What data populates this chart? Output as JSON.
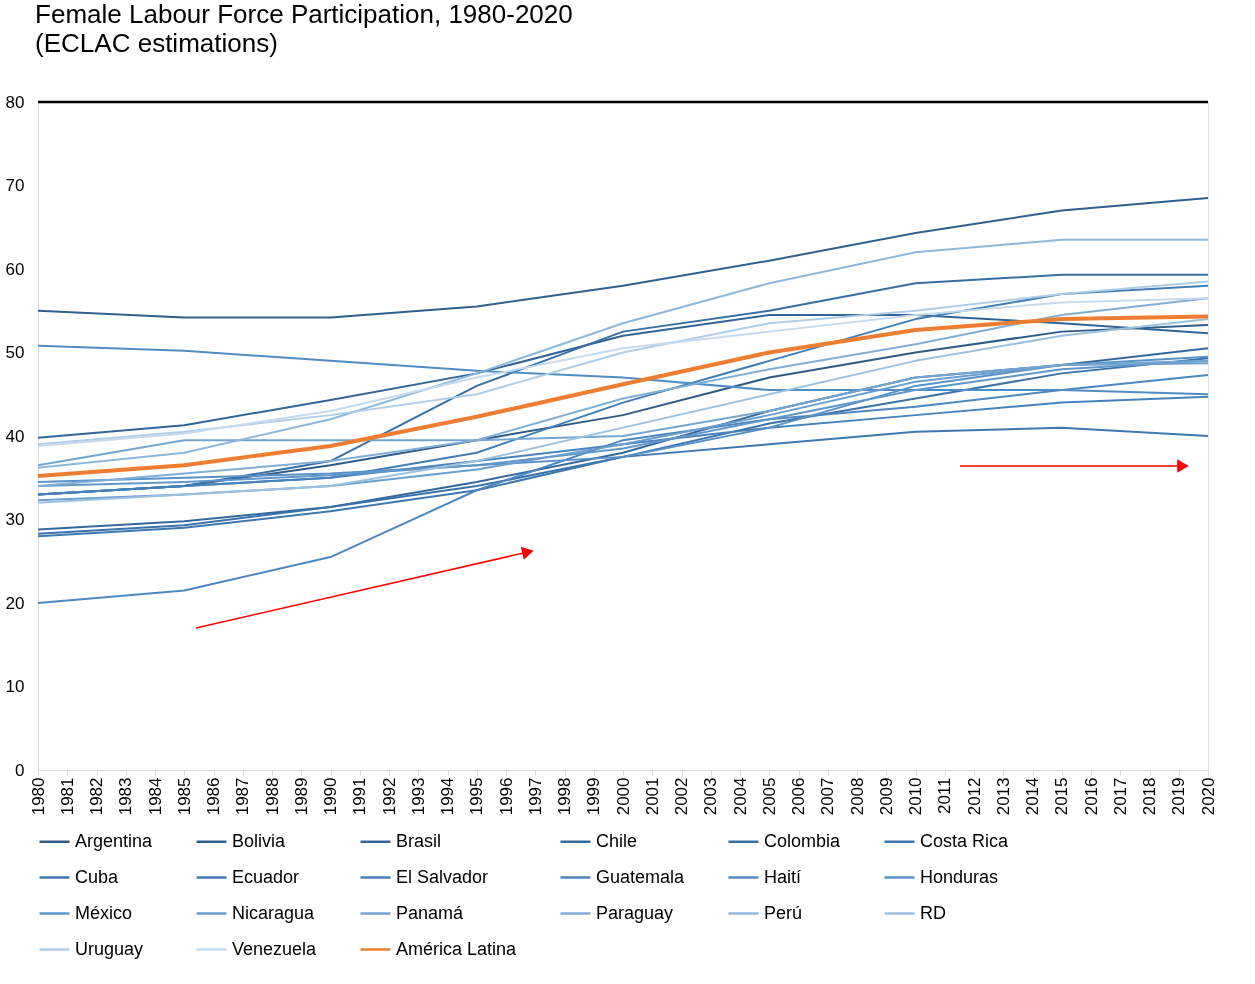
{
  "chart_data": {
    "type": "line",
    "title": "Female Labour Force Participation, 1980-2020",
    "subtitle": "(ECLAC estimations)",
    "x": [
      1980,
      1985,
      1990,
      1995,
      2000,
      2005,
      2010,
      2015,
      2020
    ],
    "xlim": [
      1980,
      2020
    ],
    "xticks": [
      1980,
      1981,
      1982,
      1983,
      1984,
      1985,
      1986,
      1987,
      1988,
      1989,
      1990,
      1991,
      1992,
      1993,
      1994,
      1995,
      1996,
      1997,
      1998,
      1999,
      2000,
      2001,
      2002,
      2003,
      2004,
      2005,
      2006,
      2007,
      2008,
      2009,
      2010,
      2011,
      2012,
      2013,
      2014,
      2015,
      2016,
      2017,
      2018,
      2019,
      2020
    ],
    "ylim": [
      0,
      80
    ],
    "yticks": [
      0,
      10,
      20,
      30,
      40,
      50,
      60,
      70,
      80
    ],
    "grid": false,
    "legend": "bottom",
    "marker": "none",
    "line_style": "solid",
    "ref_lines": [
      {
        "axis": "y",
        "value": 80,
        "color": "#000000"
      }
    ],
    "series": [
      {
        "name": "Argentina",
        "color": "#2f5b88",
        "values": [
          33,
          34,
          36.5,
          39.5,
          42.5,
          47,
          50,
          52.5,
          53.3
        ]
      },
      {
        "name": "Bolivia",
        "color": "#31608f",
        "values": [
          55,
          54.2,
          54.2,
          55.5,
          58,
          61,
          64.3,
          67,
          68.5
        ]
      },
      {
        "name": "Brasil",
        "color": "#336496",
        "values": [
          39.8,
          41.3,
          44.3,
          47.5,
          52,
          54.5,
          54.5,
          53.5,
          52.3
        ]
      },
      {
        "name": "Chile",
        "color": "#35699d",
        "values": [
          28.8,
          29.8,
          31.5,
          34.5,
          38,
          43,
          47,
          48.5,
          50.5
        ]
      },
      {
        "name": "Colombia",
        "color": "#376ea4",
        "values": [
          33,
          34,
          37,
          46,
          52.5,
          55,
          58.3,
          59.3,
          59.3
        ]
      },
      {
        "name": "Costa Rica",
        "color": "#3a73ab",
        "values": [
          28.3,
          29.3,
          31.5,
          34,
          37.5,
          41.5,
          44.5,
          47.5,
          49.3
        ]
      },
      {
        "name": "Cuba",
        "color": "#3d78b1",
        "values": [
          28,
          29,
          31,
          33.5,
          37.5,
          39,
          40.5,
          41,
          40
        ]
      },
      {
        "name": "Ecuador",
        "color": "#417db6",
        "values": [
          33,
          34,
          35,
          38,
          44,
          49,
          54,
          57,
          58
        ]
      },
      {
        "name": "El Salvador",
        "color": "#4682bb",
        "values": [
          33,
          34,
          35,
          37,
          39,
          41,
          42.5,
          44,
          44.7
        ]
      },
      {
        "name": "Guatemala",
        "color": "#4b87c0",
        "values": [
          20,
          21.5,
          25.5,
          33.5,
          39.5,
          42,
          43.5,
          45.5,
          47.3
        ]
      },
      {
        "name": "Haití",
        "color": "#518cc3",
        "values": [
          50.8,
          50.2,
          49,
          47.8,
          47,
          45.5,
          45.5,
          45.5,
          45
        ]
      },
      {
        "name": "Honduras",
        "color": "#5891c6",
        "values": [
          34.5,
          35,
          35.5,
          36.5,
          37.5,
          41,
          46,
          48.5,
          49.5
        ]
      },
      {
        "name": "México",
        "color": "#6097ca",
        "values": [
          34,
          34.5,
          35.3,
          36.5,
          38.5,
          42,
          45.5,
          48,
          49
        ]
      },
      {
        "name": "Nicaragua",
        "color": "#699ece",
        "values": [
          32.3,
          33,
          34,
          36,
          39,
          42.5,
          46.5,
          48.5,
          48.7
        ]
      },
      {
        "name": "Panamá",
        "color": "#74a5d2",
        "values": [
          36.5,
          39.5,
          39.5,
          39.5,
          40,
          43,
          47,
          48.5,
          49
        ]
      },
      {
        "name": "Paraguay",
        "color": "#80aed7",
        "values": [
          34,
          35.5,
          37,
          39.5,
          44.5,
          48,
          51,
          54.5,
          56.5
        ]
      },
      {
        "name": "Perú",
        "color": "#8db7dc",
        "values": [
          36.2,
          38,
          42,
          47.5,
          53.5,
          58.3,
          62,
          63.5,
          63.5
        ]
      },
      {
        "name": "RD",
        "color": "#9cc1e1",
        "values": [
          32,
          33,
          34,
          37,
          41,
          45,
          49,
          52,
          54
        ]
      },
      {
        "name": "Uruguay",
        "color": "#b0cde8",
        "values": [
          39,
          40.5,
          42.5,
          45,
          50,
          53.5,
          55,
          57,
          58.5
        ]
      },
      {
        "name": "Venezuela",
        "color": "#c5daef",
        "values": [
          38.8,
          40.3,
          43,
          47,
          50.5,
          52.5,
          54.5,
          56,
          56.5
        ]
      },
      {
        "name": "América Latina",
        "color": "#ed7d31",
        "values": [
          35.2,
          36.5,
          38.8,
          42.3,
          46.2,
          50,
          52.7,
          54,
          54.3
        ]
      }
    ]
  }
}
